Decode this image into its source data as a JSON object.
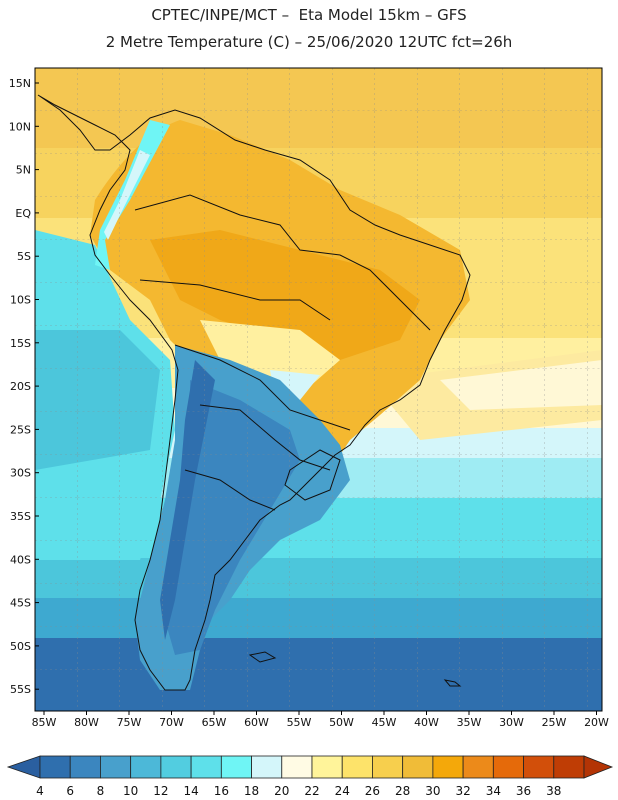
{
  "header": {
    "line1": "CPTEC/INPE/MCT –  Eta Model 15km – GFS",
    "line2": "2 Metre Temperature (C) – 25/06/2020 12UTC fct=26h"
  },
  "map": {
    "lat_labels": [
      "15N",
      "10N",
      "5N",
      "EQ",
      "5S",
      "10S",
      "15S",
      "20S",
      "25S",
      "30S",
      "35S",
      "40S",
      "45S",
      "50S",
      "55S"
    ],
    "lon_labels": [
      "85W",
      "80W",
      "75W",
      "70W",
      "65W",
      "60W",
      "55W",
      "50W",
      "45W",
      "40W",
      "35W",
      "30W",
      "25W",
      "20W"
    ]
  },
  "colorbar": {
    "labels": [
      "4",
      "6",
      "8",
      "10",
      "12",
      "14",
      "16",
      "18",
      "20",
      "22",
      "24",
      "26",
      "28",
      "30",
      "32",
      "34",
      "36",
      "38"
    ],
    "colors": [
      "#2f6fae",
      "#3b86bf",
      "#48a0cc",
      "#4cb8d8",
      "#52cde0",
      "#5ee0ea",
      "#6ff5f5",
      "#d4f6fa",
      "#fffbe4",
      "#fff49a",
      "#fde36a",
      "#f7cf4d",
      "#f0bc38",
      "#f4a80a",
      "#ec8a1a",
      "#e56a0a",
      "#d24f0a",
      "#bf3d05"
    ],
    "low_color": "#2a5fa0",
    "high_color": "#b33405"
  }
}
